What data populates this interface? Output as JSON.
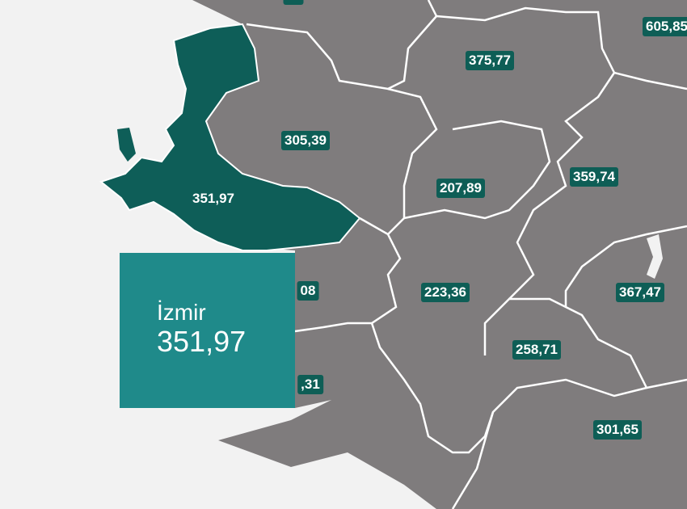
{
  "colors": {
    "background": "#f2f2f2",
    "province": "#7f7c7d",
    "selected": "#0e5e58",
    "label_bg": "#0e5e56",
    "tooltip": "#1f8a8a"
  },
  "labels": [
    {
      "id": "top-cut",
      "text": "…"
    },
    {
      "id": "605",
      "text": "605,85"
    },
    {
      "id": "375",
      "text": "375,77"
    },
    {
      "id": "305",
      "text": "305,39"
    },
    {
      "id": "izmir",
      "text": "351,97"
    },
    {
      "id": "207",
      "text": "207,89"
    },
    {
      "id": "359",
      "text": "359,74"
    },
    {
      "id": "08",
      "text": "08"
    },
    {
      "id": "223",
      "text": "223,36"
    },
    {
      "id": "367",
      "text": "367,47"
    },
    {
      "id": "258",
      "text": "258,71"
    },
    {
      "id": "31",
      "text": ",31"
    },
    {
      "id": "301",
      "text": "301,65"
    }
  ],
  "tooltip": {
    "name": "İzmir",
    "value": "351,97"
  }
}
